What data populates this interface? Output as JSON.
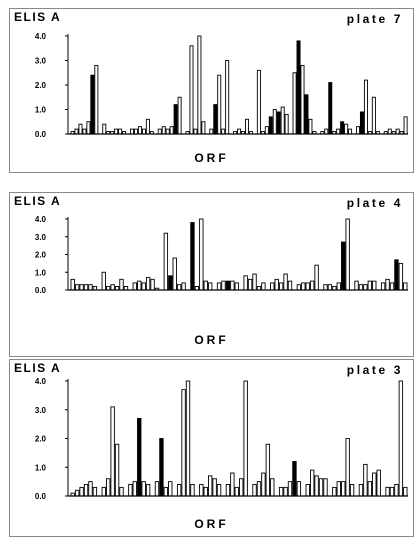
{
  "chart_data": [
    {
      "type": "bar",
      "title": "ELIS A",
      "plate_label": "plate 7",
      "xlabel": "ORF",
      "ylim": [
        0,
        4.0
      ],
      "yticks": [
        "0.0",
        "1.0",
        "2.0",
        "3.0",
        "4.0"
      ],
      "grid": false,
      "colors": {
        "normal": "#ffffff",
        "highlight": "#000000"
      },
      "groups": [
        {
          "values": [
            0.1,
            0.2,
            0.4,
            0.2,
            0.5,
            2.4,
            2.8
          ],
          "highlight": [
            false,
            false,
            false,
            false,
            false,
            true,
            false
          ]
        },
        {
          "values": [
            0.4,
            0.1,
            0.1,
            0.2,
            0.2,
            0.1
          ],
          "highlight": [
            false,
            false,
            false,
            false,
            false,
            false
          ]
        },
        {
          "values": [
            0.2,
            0.2,
            0.3,
            0.2,
            0.6,
            0.1
          ],
          "highlight": [
            false,
            false,
            false,
            false,
            false,
            false
          ]
        },
        {
          "values": [
            0.2,
            0.3,
            0.2,
            0.3,
            1.2,
            1.5
          ],
          "highlight": [
            false,
            false,
            false,
            false,
            true,
            false
          ]
        },
        {
          "values": [
            0.1,
            3.6,
            0.2,
            4.0,
            0.5
          ],
          "highlight": [
            false,
            false,
            false,
            false,
            false
          ]
        },
        {
          "values": [
            0.2,
            1.2,
            2.4,
            0.2,
            3.0
          ],
          "highlight": [
            false,
            true,
            false,
            false,
            false
          ]
        },
        {
          "values": [
            0.1,
            0.2,
            0.1,
            0.6,
            0.1
          ],
          "highlight": [
            false,
            false,
            false,
            false,
            false
          ]
        },
        {
          "values": [
            2.6,
            0.1,
            0.3,
            0.7,
            1.0,
            0.9,
            1.1,
            0.8
          ],
          "highlight": [
            false,
            false,
            false,
            true,
            false,
            true,
            false,
            false
          ]
        },
        {
          "values": [
            2.5,
            3.8,
            2.8,
            1.6,
            0.6,
            0.1
          ],
          "highlight": [
            false,
            true,
            false,
            true,
            false,
            false
          ]
        },
        {
          "values": [
            0.1,
            0.2,
            2.1,
            0.1,
            0.2,
            0.5,
            0.4,
            0.2
          ],
          "highlight": [
            false,
            false,
            true,
            false,
            false,
            true,
            false,
            false
          ]
        },
        {
          "values": [
            0.3,
            0.9,
            2.2,
            0.1,
            1.5,
            0.1
          ],
          "highlight": [
            false,
            true,
            false,
            false,
            false,
            false
          ]
        },
        {
          "values": [
            0.1,
            0.2,
            0.1,
            0.2,
            0.1,
            0.7
          ],
          "highlight": [
            false,
            false,
            false,
            false,
            false,
            false
          ]
        }
      ]
    },
    {
      "type": "bar",
      "title": "ELIS A",
      "plate_label": "plate 4",
      "xlabel": "ORF",
      "ylim": [
        0,
        4.0
      ],
      "yticks": [
        "0.0",
        "1.0",
        "2.0",
        "3.0",
        "4.0"
      ],
      "grid": false,
      "colors": {
        "normal": "#ffffff",
        "highlight": "#000000"
      },
      "groups": [
        {
          "values": [
            0.6,
            0.3,
            0.3,
            0.3,
            0.3,
            0.2
          ],
          "highlight": [
            false,
            false,
            false,
            false,
            false,
            false
          ]
        },
        {
          "values": [
            1.0,
            0.2,
            0.3,
            0.2,
            0.6,
            0.2
          ],
          "highlight": [
            false,
            false,
            false,
            false,
            false,
            false
          ]
        },
        {
          "values": [
            0.4,
            0.5,
            0.4,
            0.7,
            0.6,
            0.1
          ],
          "highlight": [
            false,
            false,
            false,
            false,
            false,
            false
          ]
        },
        {
          "values": [
            3.2,
            0.8,
            1.8,
            0.3,
            0.4
          ],
          "highlight": [
            false,
            true,
            false,
            false,
            false
          ]
        },
        {
          "values": [
            3.8,
            0.2,
            4.0,
            0.5,
            0.4
          ],
          "highlight": [
            true,
            false,
            false,
            false,
            false
          ]
        },
        {
          "values": [
            0.4,
            0.5,
            0.5,
            0.5,
            0.4
          ],
          "highlight": [
            false,
            false,
            true,
            false,
            false
          ]
        },
        {
          "values": [
            0.8,
            0.6,
            0.9,
            0.2,
            0.4
          ],
          "highlight": [
            false,
            false,
            false,
            false,
            false
          ]
        },
        {
          "values": [
            0.4,
            0.6,
            0.4,
            0.9,
            0.5
          ],
          "highlight": [
            false,
            false,
            false,
            false,
            false
          ]
        },
        {
          "values": [
            0.3,
            0.4,
            0.4,
            0.5,
            1.4
          ],
          "highlight": [
            false,
            false,
            false,
            false,
            false
          ]
        },
        {
          "values": [
            0.3,
            0.3,
            0.2,
            0.4,
            2.7,
            4.0
          ],
          "highlight": [
            false,
            false,
            false,
            false,
            true,
            false
          ]
        },
        {
          "values": [
            0.5,
            0.3,
            0.3,
            0.5,
            0.5
          ],
          "highlight": [
            false,
            false,
            false,
            false,
            false
          ]
        },
        {
          "values": [
            0.4,
            0.6,
            0.4,
            1.7,
            1.5,
            0.4
          ],
          "highlight": [
            false,
            false,
            false,
            true,
            false,
            false
          ]
        }
      ]
    },
    {
      "type": "bar",
      "title": "ELIS A",
      "plate_label": "plate 3",
      "xlabel": "ORF",
      "ylim": [
        0,
        4.0
      ],
      "yticks": [
        "0.0",
        "1.0",
        "2.0",
        "3.0",
        "4.0"
      ],
      "grid": false,
      "colors": {
        "normal": "#ffffff",
        "highlight": "#000000"
      },
      "groups": [
        {
          "values": [
            0.1,
            0.2,
            0.3,
            0.4,
            0.5,
            0.3
          ],
          "highlight": [
            false,
            false,
            false,
            false,
            false,
            false
          ]
        },
        {
          "values": [
            0.3,
            0.6,
            3.1,
            1.8,
            0.3
          ],
          "highlight": [
            false,
            false,
            false,
            false,
            false
          ]
        },
        {
          "values": [
            0.4,
            0.5,
            2.7,
            0.5,
            0.4
          ],
          "highlight": [
            false,
            false,
            true,
            false,
            false
          ]
        },
        {
          "values": [
            0.5,
            2.0,
            0.3,
            0.5
          ],
          "highlight": [
            false,
            true,
            false,
            false
          ]
        },
        {
          "values": [
            0.4,
            3.7,
            4.0,
            0.4
          ],
          "highlight": [
            false,
            false,
            false,
            false
          ]
        },
        {
          "values": [
            0.4,
            0.3,
            0.7,
            0.6,
            0.4
          ],
          "highlight": [
            false,
            false,
            false,
            false,
            false
          ]
        },
        {
          "values": [
            0.4,
            0.8,
            0.3,
            0.6,
            4.0
          ],
          "highlight": [
            false,
            false,
            false,
            false,
            false
          ]
        },
        {
          "values": [
            0.4,
            0.5,
            0.8,
            1.8,
            0.6
          ],
          "highlight": [
            false,
            false,
            false,
            false,
            false
          ]
        },
        {
          "values": [
            0.3,
            0.3,
            0.5,
            1.2,
            0.5
          ],
          "highlight": [
            false,
            false,
            false,
            true,
            false
          ]
        },
        {
          "values": [
            0.4,
            0.9,
            0.7,
            0.6,
            0.6
          ],
          "highlight": [
            false,
            false,
            false,
            false,
            false
          ]
        },
        {
          "values": [
            0.3,
            0.5,
            0.5,
            2.0,
            0.4
          ],
          "highlight": [
            false,
            false,
            false,
            false,
            false
          ]
        },
        {
          "values": [
            0.4,
            1.1,
            0.5,
            0.8,
            0.9
          ],
          "highlight": [
            false,
            false,
            false,
            false,
            false
          ]
        },
        {
          "values": [
            0.3,
            0.3,
            0.4,
            4.0,
            0.3
          ],
          "highlight": [
            false,
            false,
            false,
            false,
            false
          ]
        }
      ]
    }
  ]
}
